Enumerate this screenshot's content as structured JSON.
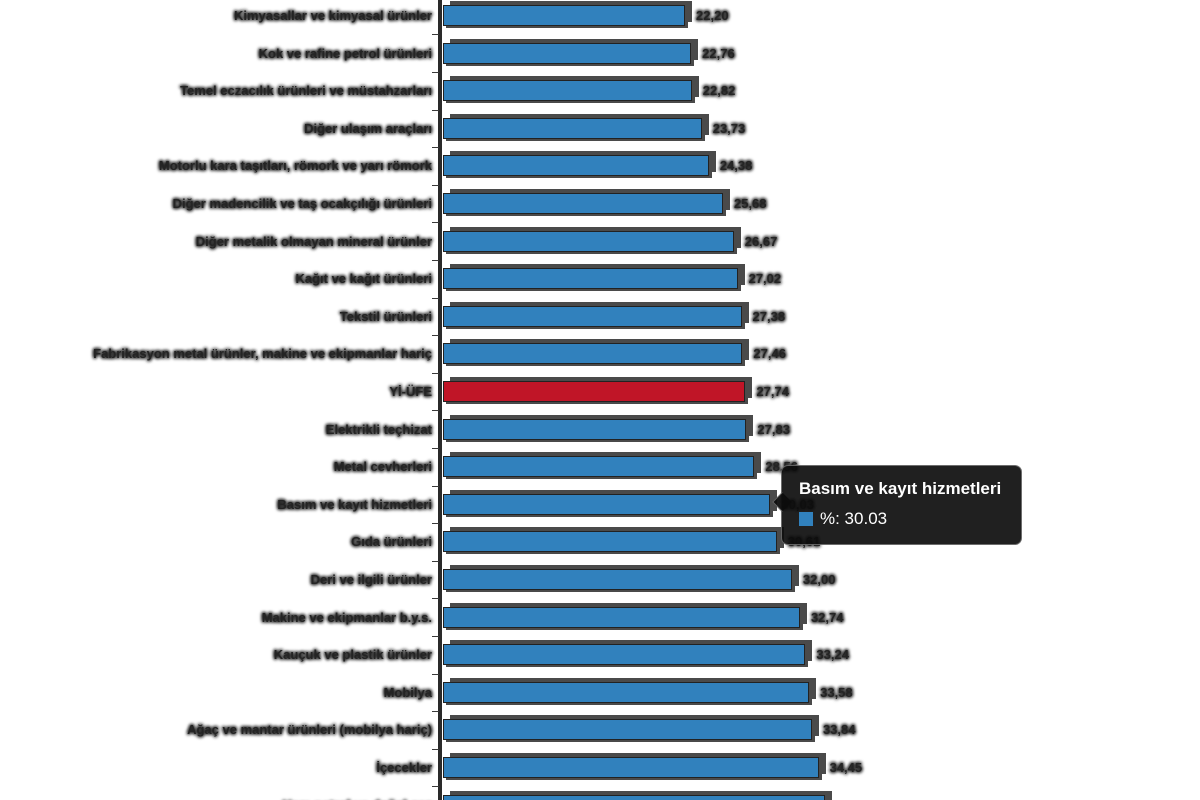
{
  "chart_data": {
    "type": "bar",
    "orientation": "horizontal",
    "title": "",
    "xlabel": "",
    "ylabel": "",
    "unit": "%",
    "xlim": [
      0,
      69
    ],
    "grid": false,
    "legend_position": "none",
    "colors": {
      "default_bar": "#3181bd",
      "highlight_bar": "#c01527",
      "bar_shadow": "#4a4a4a",
      "axis": "#2a2a2a"
    },
    "categories": [
      "Kimyasallar ve kimyasal ürünler",
      "Kok ve rafine petrol ürünleri",
      "Temel eczacılık ürünleri ve müstahzarları",
      "Diğer ulaşım araçları",
      "Motorlu kara taşıtları, römork ve yarı römork",
      "Diğer madencilik ve taş ocakçılığı ürünleri",
      "Diğer metalik olmayan mineral ürünler",
      "Kağıt ve kağıt ürünleri",
      "Tekstil ürünleri",
      "Fabrikasyon metal ürünler, makine ve ekipmanlar hariç",
      "Yİ-ÜFE",
      "Elektrikli teçhizat",
      "Metal cevherleri",
      "Basım ve kayıt hizmetleri",
      "Gıda ürünleri",
      "Deri ve ilgili ürünler",
      "Makine ve ekipmanlar b.y.s.",
      "Kauçuk ve plastik ürünler",
      "Mobilya",
      "Ağaç ve mantar ürünleri (mobilya hariç)",
      "İçecekler",
      "Ham petrol ve doğal gaz"
    ],
    "values": [
      22.2,
      22.76,
      22.82,
      23.73,
      24.38,
      25.68,
      26.67,
      27.02,
      27.38,
      27.46,
      27.74,
      27.83,
      28.56,
      30.03,
      30.61,
      32.0,
      32.74,
      33.24,
      33.58,
      33.84,
      34.45,
      35.0
    ],
    "value_labels": [
      "22,20",
      "22,76",
      "22,82",
      "23,73",
      "24,38",
      "25,68",
      "26,67",
      "27,02",
      "27,38",
      "27,46",
      "27,74",
      "27,83",
      "28,56",
      "30,03",
      "30,61",
      "32,00",
      "32,74",
      "33,24",
      "33,58",
      "33,84",
      "34,45",
      ""
    ],
    "highlight_index": 10
  },
  "tooltip": {
    "title": "Basım ve kayıt hizmetleri",
    "swatch_color": "#3181bd",
    "value_line": "%: 30.03",
    "target_index": 13
  }
}
